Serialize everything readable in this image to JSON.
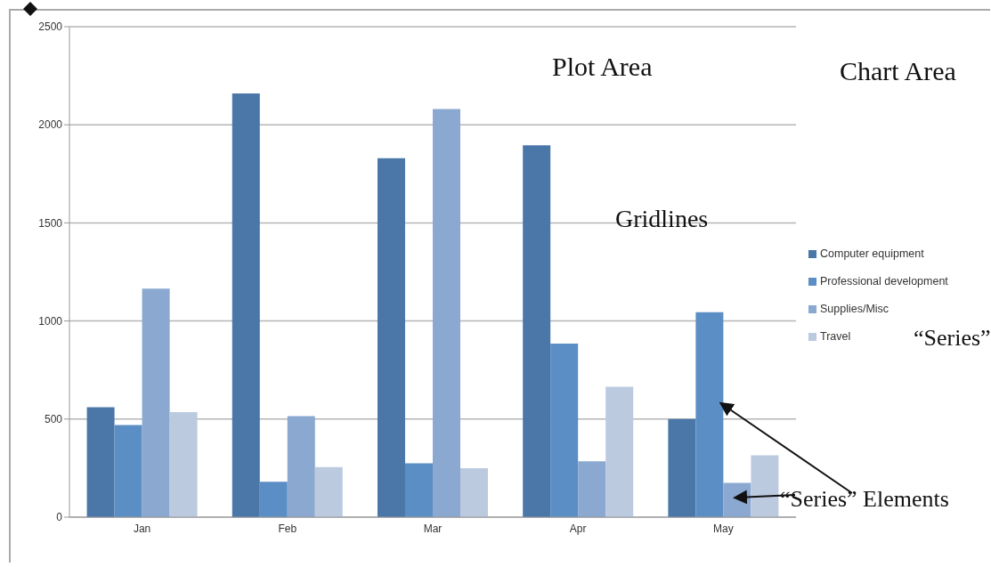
{
  "chart_data": {
    "type": "bar",
    "categories": [
      "Jan",
      "Feb",
      "Mar",
      "Apr",
      "May"
    ],
    "series": [
      {
        "name": "Computer equipment",
        "color": "#4a77a8",
        "values": [
          560,
          2160,
          1830,
          1895,
          500
        ]
      },
      {
        "name": "Professional development",
        "color": "#5b8ec4",
        "values": [
          470,
          180,
          275,
          885,
          1045
        ]
      },
      {
        "name": "Supplies/Misc",
        "color": "#8aa8d0",
        "values": [
          1165,
          515,
          2080,
          285,
          175
        ]
      },
      {
        "name": "Travel",
        "color": "#bccae0",
        "values": [
          535,
          255,
          250,
          665,
          315
        ]
      }
    ],
    "ylim": [
      0,
      2500
    ],
    "yticks": [
      0,
      500,
      1000,
      1500,
      2000,
      2500
    ],
    "grid": "y",
    "legend": "right",
    "annotations": [
      "Plot Area",
      "Chart Area",
      "Gridlines",
      "“Series”",
      {
        "text": "“Series” Elements",
        "x": "May",
        "y": 600
      }
    ]
  }
}
